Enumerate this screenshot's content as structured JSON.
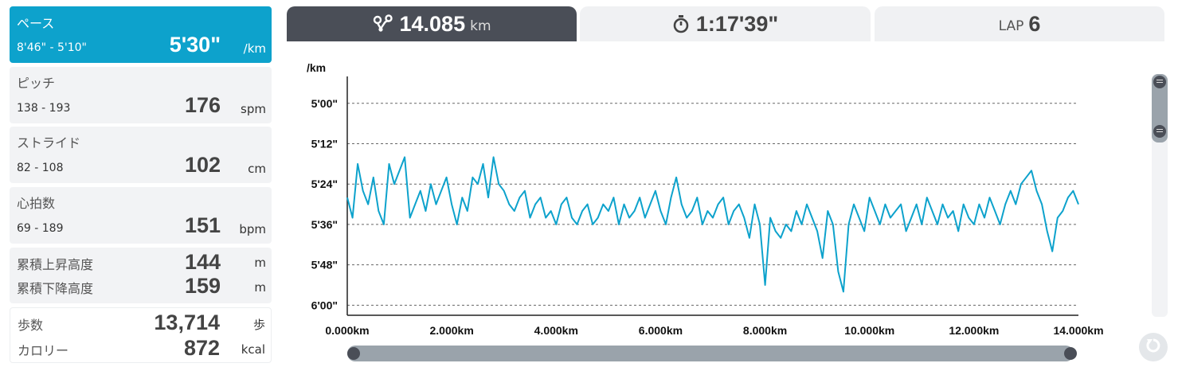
{
  "metrics": {
    "pace": {
      "label": "ペース",
      "range": "8'46\" - 5'10\"",
      "value": "5'30\"",
      "unit": "/km"
    },
    "pitch": {
      "label": "ピッチ",
      "range": "138 - 193",
      "value": "176",
      "unit": "spm"
    },
    "stride": {
      "label": "ストライド",
      "range": "82 - 108",
      "value": "102",
      "unit": "cm"
    },
    "heart_rate": {
      "label": "心拍数",
      "range": "69 - 189",
      "value": "151",
      "unit": "bpm"
    },
    "ascent": {
      "label": "累積上昇高度",
      "value": "144",
      "unit": "m"
    },
    "descent": {
      "label": "累積下降高度",
      "value": "159",
      "unit": "m"
    },
    "steps": {
      "label": "歩数",
      "value": "13,714",
      "unit": "歩"
    },
    "calories": {
      "label": "カロリー",
      "value": "872",
      "unit": "kcal"
    }
  },
  "tabs": {
    "distance": {
      "value": "14.085",
      "unit": "km",
      "icon": "route-icon"
    },
    "time": {
      "value": "1:17'39\"",
      "icon": "stopwatch-icon"
    },
    "lap": {
      "label": "LAP",
      "value": "6"
    }
  },
  "colors": {
    "accent": "#0da2cc",
    "tab_active": "#4a4e57",
    "line": "#0da2cc"
  },
  "chart_data": {
    "type": "line",
    "ylabel": "/km",
    "xlim": [
      0,
      14
    ],
    "ylim_seconds": [
      292,
      363
    ],
    "y_ticks": [
      {
        "seconds": 300,
        "label": "5'00\""
      },
      {
        "seconds": 312,
        "label": "5'12\""
      },
      {
        "seconds": 324,
        "label": "5'24\""
      },
      {
        "seconds": 336,
        "label": "5'36\""
      },
      {
        "seconds": 348,
        "label": "5'48\""
      },
      {
        "seconds": 360,
        "label": "6'00\""
      }
    ],
    "x_ticks": [
      {
        "km": 0,
        "label": "0.000km"
      },
      {
        "km": 2,
        "label": "2.000km"
      },
      {
        "km": 4,
        "label": "4.000km"
      },
      {
        "km": 6,
        "label": "6.000km"
      },
      {
        "km": 8,
        "label": "8.000km"
      },
      {
        "km": 10,
        "label": "10.000km"
      },
      {
        "km": 12,
        "label": "12.000km"
      },
      {
        "km": 14,
        "label": "14.000km"
      }
    ],
    "grid": true,
    "series": [
      {
        "x_km": [
          0.0,
          0.1,
          0.2,
          0.3,
          0.4,
          0.5,
          0.6,
          0.7,
          0.8,
          0.9,
          1.0,
          1.1,
          1.2,
          1.3,
          1.4,
          1.5,
          1.6,
          1.7,
          1.8,
          1.9,
          2.0,
          2.1,
          2.2,
          2.3,
          2.4,
          2.5,
          2.6,
          2.7,
          2.8,
          2.9,
          3.0,
          3.1,
          3.2,
          3.3,
          3.4,
          3.5,
          3.6,
          3.7,
          3.8,
          3.9,
          4.0,
          4.1,
          4.2,
          4.3,
          4.4,
          4.5,
          4.6,
          4.7,
          4.8,
          4.9,
          5.0,
          5.1,
          5.2,
          5.3,
          5.4,
          5.5,
          5.6,
          5.7,
          5.8,
          5.9,
          6.0,
          6.1,
          6.2,
          6.3,
          6.4,
          6.5,
          6.6,
          6.7,
          6.8,
          6.9,
          7.0,
          7.1,
          7.2,
          7.3,
          7.4,
          7.5,
          7.6,
          7.7,
          7.8,
          7.9,
          8.0,
          8.1,
          8.2,
          8.3,
          8.4,
          8.5,
          8.6,
          8.7,
          8.8,
          8.9,
          9.0,
          9.1,
          9.2,
          9.3,
          9.4,
          9.5,
          9.6,
          9.7,
          9.8,
          9.9,
          10.0,
          10.1,
          10.2,
          10.3,
          10.4,
          10.5,
          10.6,
          10.7,
          10.8,
          10.9,
          11.0,
          11.1,
          11.2,
          11.3,
          11.4,
          11.5,
          11.6,
          11.7,
          11.8,
          11.9,
          12.0,
          12.1,
          12.2,
          12.3,
          12.4,
          12.5,
          12.6,
          12.7,
          12.8,
          12.9,
          13.0,
          13.1,
          13.2,
          13.3,
          13.4,
          13.5,
          13.6,
          13.7,
          13.8,
          13.9,
          14.0
        ],
        "pace_seconds": [
          328,
          334,
          318,
          326,
          330,
          322,
          332,
          336,
          318,
          324,
          320,
          316,
          334,
          330,
          326,
          332,
          324,
          330,
          326,
          322,
          330,
          336,
          328,
          332,
          322,
          324,
          318,
          328,
          316,
          324,
          326,
          330,
          332,
          328,
          326,
          334,
          330,
          328,
          334,
          332,
          336,
          330,
          328,
          334,
          336,
          332,
          330,
          336,
          334,
          330,
          332,
          328,
          336,
          330,
          334,
          332,
          328,
          334,
          330,
          326,
          332,
          336,
          328,
          322,
          330,
          334,
          332,
          328,
          336,
          332,
          334,
          330,
          328,
          336,
          332,
          330,
          334,
          340,
          330,
          336,
          354,
          334,
          338,
          340,
          336,
          338,
          332,
          336,
          330,
          334,
          338,
          346,
          332,
          336,
          350,
          356,
          336,
          330,
          334,
          338,
          328,
          332,
          336,
          330,
          334,
          332,
          330,
          338,
          334,
          330,
          336,
          328,
          332,
          336,
          330,
          334,
          332,
          338,
          330,
          334,
          336,
          330,
          334,
          328,
          332,
          336,
          330,
          326,
          330,
          324,
          322,
          320,
          326,
          330,
          338,
          344,
          334,
          332,
          328,
          326,
          330
        ]
      }
    ]
  }
}
